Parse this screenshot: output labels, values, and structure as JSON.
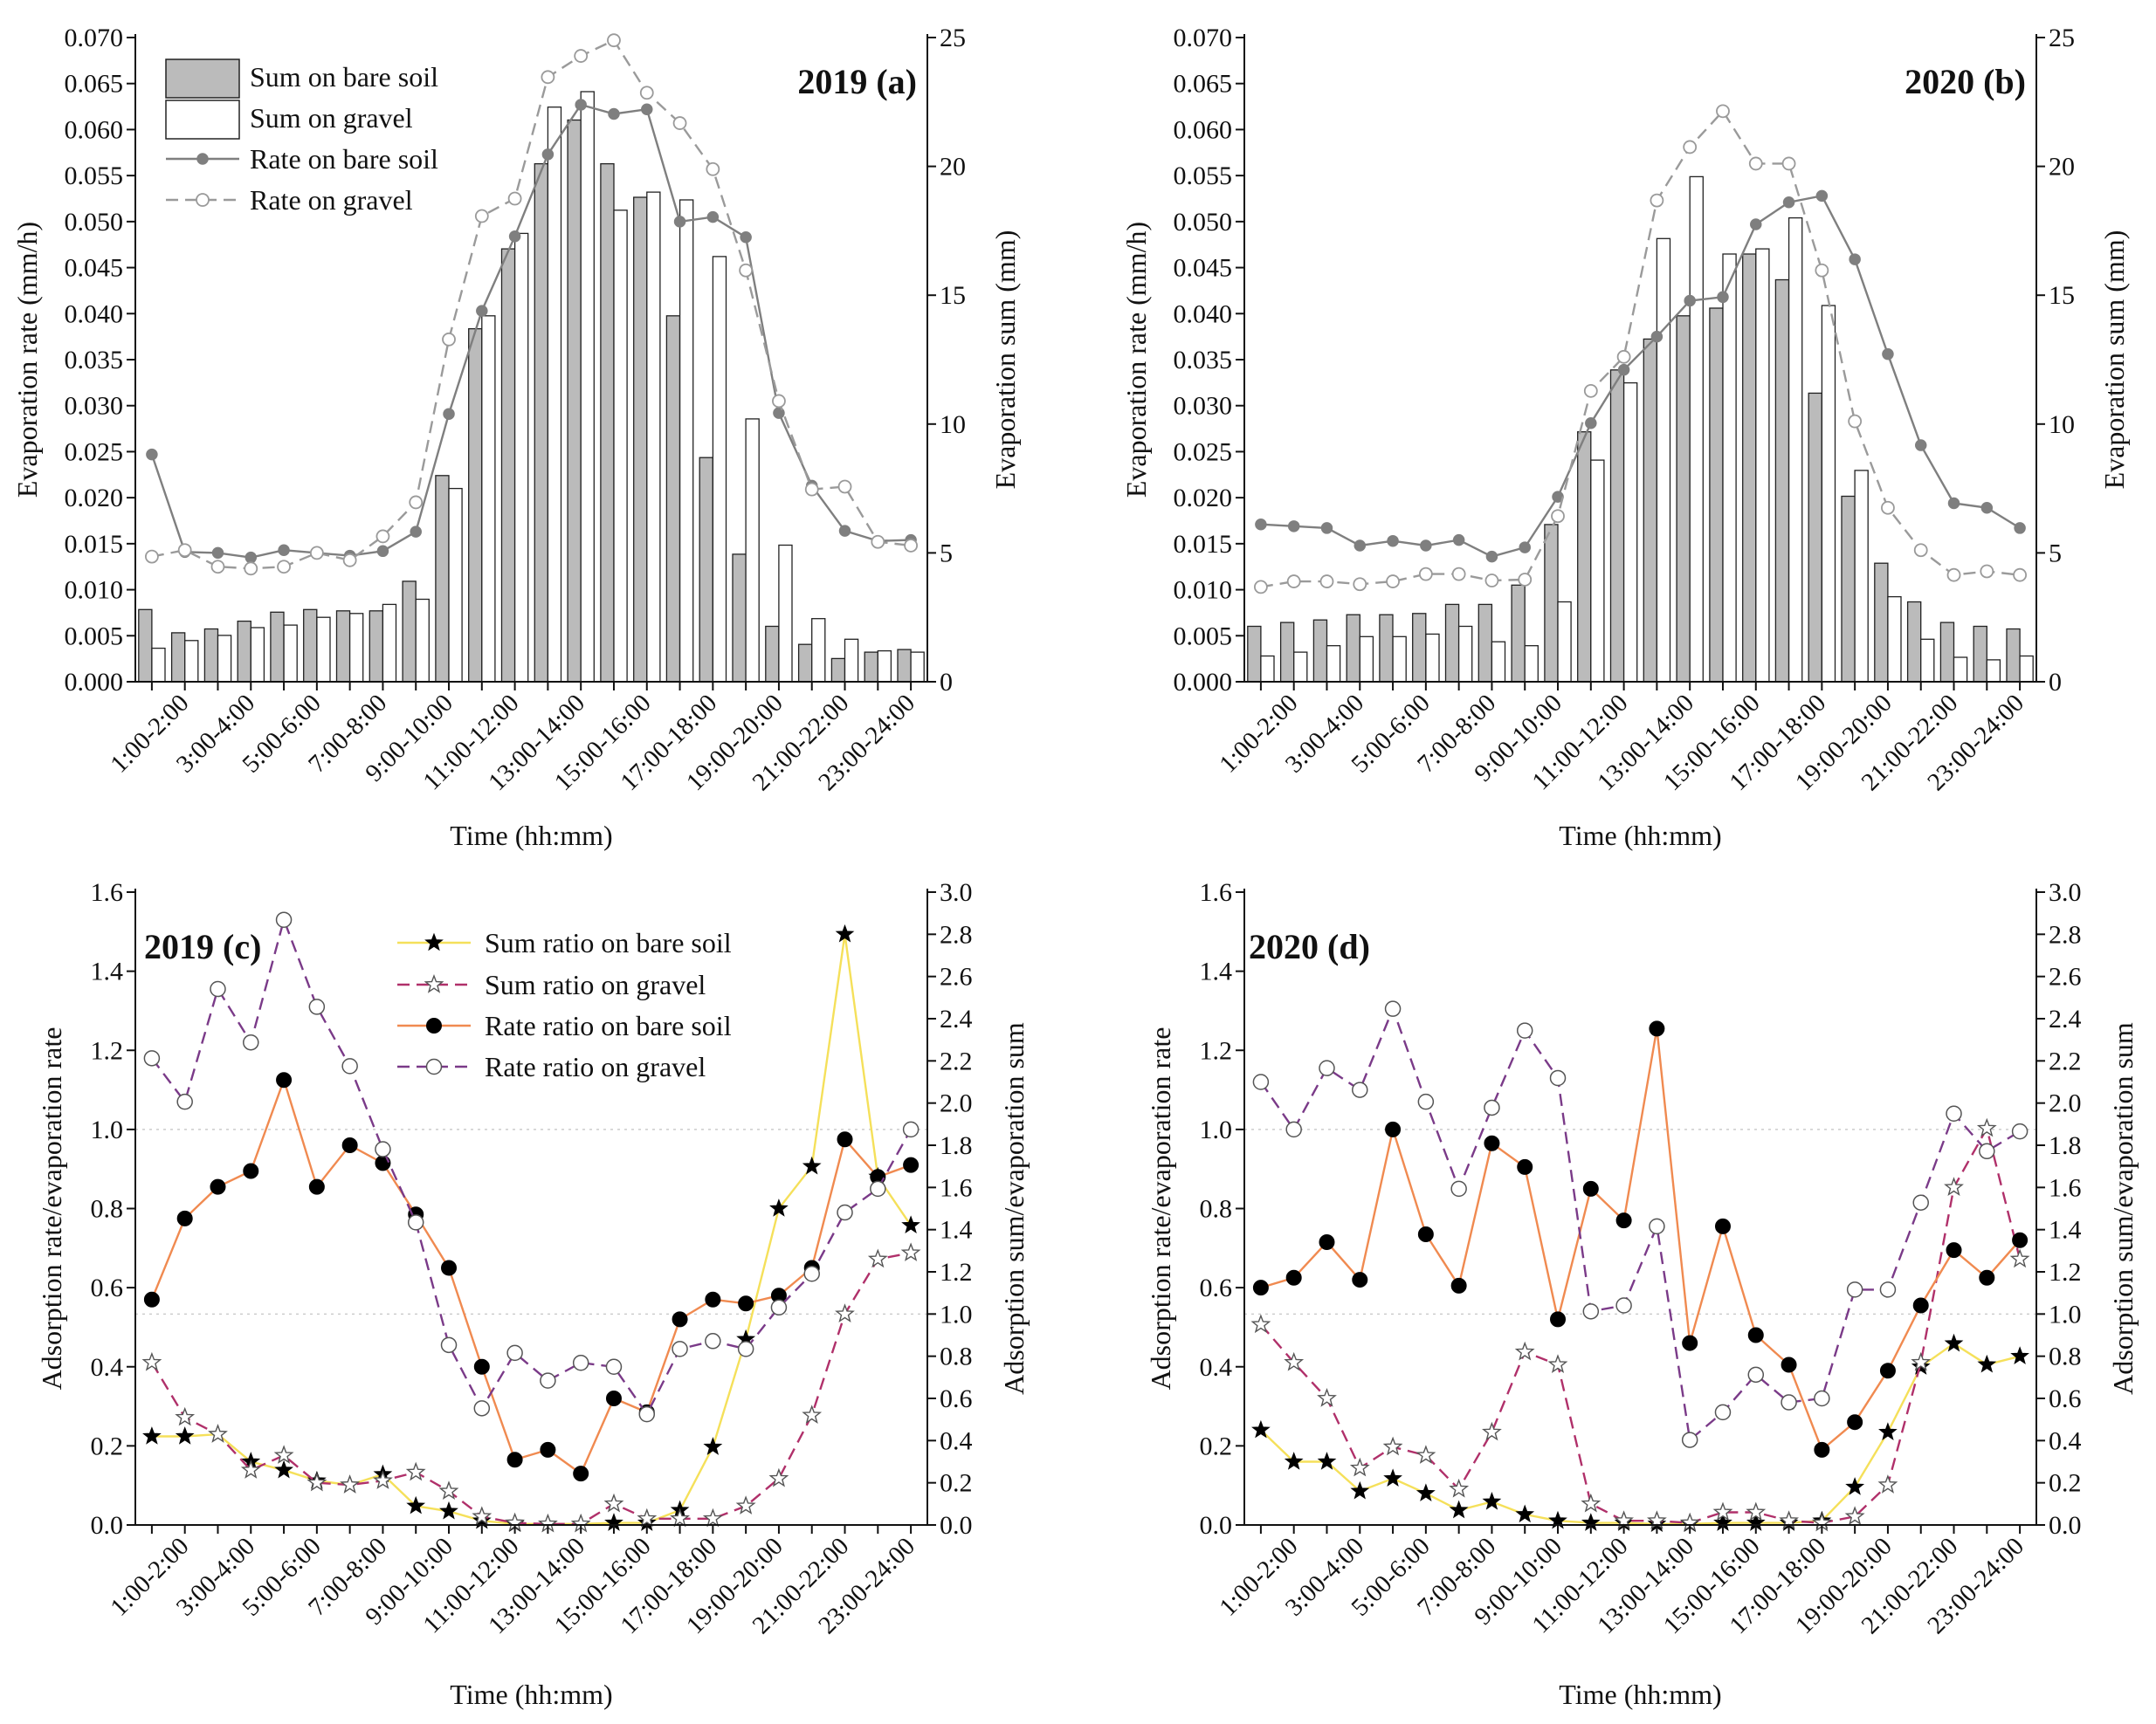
{
  "chart_data": [
    {
      "id": "a",
      "type": "bar+line",
      "title": "2019 (a)",
      "xlabel": "Time (hh:mm)",
      "ylabel_left": "Evaporation rate (mm/h)",
      "ylabel_right": "Evaporation sum (mm)",
      "ylim_left": [
        0,
        0.07
      ],
      "ylim_right": [
        0,
        25
      ],
      "yticks_left": [
        "0.000",
        "0.005",
        "0.010",
        "0.015",
        "0.020",
        "0.025",
        "0.030",
        "0.035",
        "0.040",
        "0.045",
        "0.050",
        "0.055",
        "0.060",
        "0.065",
        "0.070"
      ],
      "yticks_right": [
        "0",
        "5",
        "10",
        "15",
        "20",
        "25"
      ],
      "x_tick_labels": [
        "1:00-2:00",
        "3:00-4:00",
        "5:00-6:00",
        "7:00-8:00",
        "9:00-10:00",
        "11:00-12:00",
        "13:00-14:00",
        "15:00-16:00",
        "17:00-18:00",
        "19:00-20:00",
        "21:00-22:00",
        "23:00-24:00"
      ],
      "legend_position": "top-left",
      "series": [
        {
          "name": "Sum on bare soil",
          "kind": "bar",
          "axis": "right",
          "color": "#bbbbbb",
          "values": [
            2.8,
            1.9,
            2.05,
            2.35,
            2.7,
            2.8,
            2.75,
            2.75,
            3.9,
            8.0,
            13.7,
            16.8,
            20.1,
            21.8,
            20.1,
            18.8,
            14.2,
            8.7,
            4.95,
            2.15,
            1.45,
            0.9,
            1.15,
            1.25
          ]
        },
        {
          "name": "Sum on gravel",
          "kind": "bar",
          "axis": "right",
          "color": "#ffffff",
          "values": [
            1.3,
            1.6,
            1.8,
            2.1,
            2.2,
            2.5,
            2.65,
            3.0,
            3.2,
            7.5,
            14.2,
            17.4,
            22.3,
            22.9,
            18.3,
            19.0,
            18.7,
            16.5,
            10.2,
            5.3,
            2.45,
            1.65,
            1.2,
            1.15
          ]
        },
        {
          "name": "Rate on bare soil",
          "kind": "line",
          "axis": "left",
          "color": "#7f7f7f",
          "marker": "filled-circle",
          "values": [
            0.0247,
            0.0141,
            0.014,
            0.0135,
            0.0143,
            0.014,
            0.0137,
            0.0142,
            0.0163,
            0.0291,
            0.0403,
            0.0484,
            0.0573,
            0.0627,
            0.0617,
            0.0622,
            0.05,
            0.0505,
            0.0483,
            0.0292,
            0.0213,
            0.0164,
            0.0153,
            0.0154
          ]
        },
        {
          "name": "Rate on gravel",
          "kind": "line",
          "axis": "left",
          "color": "#9a9a9a",
          "dash": "14 8",
          "marker": "open-circle",
          "values": [
            0.0136,
            0.0143,
            0.0125,
            0.0123,
            0.0125,
            0.014,
            0.0132,
            0.0158,
            0.0195,
            0.0372,
            0.0506,
            0.0525,
            0.0657,
            0.068,
            0.0697,
            0.064,
            0.0607,
            0.0557,
            0.0447,
            0.0305,
            0.0209,
            0.0212,
            0.0152,
            0.0148
          ]
        }
      ]
    },
    {
      "id": "b",
      "type": "bar+line",
      "title": "2020 (b)",
      "xlabel": "Time (hh:mm)",
      "ylabel_left": "Evaporation rate (mm/h)",
      "ylabel_right": "Evaporation sum (mm)",
      "ylim_left": [
        0,
        0.07
      ],
      "ylim_right": [
        0,
        25
      ],
      "yticks_left": [
        "0.000",
        "0.005",
        "0.010",
        "0.015",
        "0.020",
        "0.025",
        "0.030",
        "0.035",
        "0.040",
        "0.045",
        "0.050",
        "0.055",
        "0.060",
        "0.065",
        "0.070"
      ],
      "yticks_right": [
        "0",
        "5",
        "10",
        "15",
        "20",
        "25"
      ],
      "x_tick_labels": [
        "1:00-2:00",
        "3:00-4:00",
        "5:00-6:00",
        "7:00-8:00",
        "9:00-10:00",
        "11:00-12:00",
        "13:00-14:00",
        "15:00-16:00",
        "17:00-18:00",
        "19:00-20:00",
        "21:00-22:00",
        "23:00-24:00"
      ],
      "legend_position": "none",
      "series": [
        {
          "name": "Sum on bare soil",
          "kind": "bar",
          "axis": "right",
          "color": "#bbbbbb",
          "values": [
            2.15,
            2.3,
            2.4,
            2.6,
            2.6,
            2.65,
            3.0,
            3.0,
            3.75,
            6.1,
            9.7,
            12.1,
            13.3,
            14.2,
            14.5,
            16.6,
            15.6,
            11.2,
            7.2,
            4.6,
            3.1,
            2.3,
            2.15,
            2.05
          ]
        },
        {
          "name": "Sum on gravel",
          "kind": "bar",
          "axis": "right",
          "color": "#ffffff",
          "values": [
            1.0,
            1.15,
            1.4,
            1.75,
            1.75,
            1.85,
            2.15,
            1.55,
            1.4,
            3.1,
            8.6,
            11.6,
            17.2,
            19.6,
            16.6,
            16.8,
            18.0,
            14.6,
            8.2,
            3.3,
            1.65,
            0.95,
            0.85,
            1.0
          ]
        },
        {
          "name": "Rate on bare soil",
          "kind": "line",
          "axis": "left",
          "color": "#7f7f7f",
          "marker": "filled-circle",
          "values": [
            0.0171,
            0.0169,
            0.0167,
            0.0148,
            0.0153,
            0.0148,
            0.0154,
            0.0136,
            0.0146,
            0.0201,
            0.0281,
            0.0339,
            0.0375,
            0.0414,
            0.0418,
            0.0497,
            0.0521,
            0.0528,
            0.0459,
            0.0356,
            0.0257,
            0.0194,
            0.0189,
            0.0167
          ]
        },
        {
          "name": "Rate on gravel",
          "kind": "line",
          "axis": "left",
          "color": "#9a9a9a",
          "dash": "14 8",
          "marker": "open-circle",
          "values": [
            0.0103,
            0.0109,
            0.0109,
            0.0106,
            0.0109,
            0.0117,
            0.0117,
            0.011,
            0.0111,
            0.018,
            0.0316,
            0.0353,
            0.0523,
            0.0581,
            0.062,
            0.0563,
            0.0563,
            0.0447,
            0.0283,
            0.0189,
            0.0143,
            0.0116,
            0.012,
            0.0116
          ]
        }
      ]
    },
    {
      "id": "c",
      "type": "line",
      "title": "2019 (c)",
      "xlabel": "Time (hh:mm)",
      "ylabel_left": "Adsorption rate/evaporation rate",
      "ylabel_right": "Adsorption sum/evaporation sum",
      "ylim_left": [
        0,
        1.6
      ],
      "ylim_right": [
        0,
        3.0
      ],
      "yticks_left": [
        "0.0",
        "0.2",
        "0.4",
        "0.6",
        "0.8",
        "1.0",
        "1.2",
        "1.4",
        "1.6"
      ],
      "yticks_right": [
        "0.0",
        "0.2",
        "0.4",
        "0.6",
        "0.8",
        "1.0",
        "1.2",
        "1.4",
        "1.6",
        "1.8",
        "2.0",
        "2.2",
        "2.4",
        "2.6",
        "2.8",
        "3.0"
      ],
      "reference_lines": [
        {
          "axis": "left",
          "value": 1.0
        },
        {
          "axis": "right",
          "value": 1.0
        }
      ],
      "x_tick_labels": [
        "1:00-2:00",
        "3:00-4:00",
        "5:00-6:00",
        "7:00-8:00",
        "9:00-10:00",
        "11:00-12:00",
        "13:00-14:00",
        "15:00-16:00",
        "17:00-18:00",
        "19:00-20:00",
        "21:00-22:00",
        "23:00-24:00"
      ],
      "legend_position": "top-center",
      "series": [
        {
          "name": "Sum ratio on bare soil",
          "axis": "right",
          "color": "#f5e05a",
          "marker": "filled-star",
          "values": [
            0.42,
            0.42,
            0.43,
            0.3,
            0.26,
            0.21,
            0.19,
            0.24,
            0.09,
            0.065,
            0.02,
            0.005,
            0.005,
            0.005,
            0.01,
            0.01,
            0.07,
            0.37,
            0.88,
            1.5,
            1.7,
            2.8,
            1.65,
            1.42
          ]
        },
        {
          "name": "Sum ratio on gravel",
          "axis": "right",
          "color": "#b0306a",
          "dash": "14 8",
          "marker": "open-star",
          "values": [
            0.77,
            0.51,
            0.43,
            0.26,
            0.33,
            0.2,
            0.19,
            0.21,
            0.25,
            0.16,
            0.04,
            0.01,
            0.005,
            0.005,
            0.1,
            0.03,
            0.03,
            0.03,
            0.09,
            0.22,
            0.52,
            1.0,
            1.26,
            1.29
          ]
        },
        {
          "name": "Rate ratio on bare soil",
          "axis": "left",
          "color": "#f08a50",
          "marker": "filled-circle",
          "values": [
            0.57,
            0.775,
            0.855,
            0.895,
            1.125,
            0.855,
            0.96,
            0.915,
            0.785,
            0.65,
            0.4,
            0.165,
            0.19,
            0.13,
            0.32,
            0.285,
            0.52,
            0.57,
            0.56,
            0.58,
            0.65,
            0.975,
            0.88,
            0.91
          ]
        },
        {
          "name": "Rate ratio on gravel",
          "axis": "left",
          "color": "#7a3a88",
          "dash": "14 8",
          "marker": "open-circle",
          "values": [
            1.18,
            1.07,
            1.355,
            1.22,
            1.53,
            1.31,
            1.16,
            0.95,
            0.765,
            0.455,
            0.295,
            0.435,
            0.365,
            0.41,
            0.4,
            0.28,
            0.445,
            0.465,
            0.445,
            0.55,
            0.635,
            0.79,
            0.85,
            1.0
          ]
        }
      ]
    },
    {
      "id": "d",
      "type": "line",
      "title": "2020 (d)",
      "xlabel": "Time (hh:mm)",
      "ylabel_left": "Adsorption rate/evaporation rate",
      "ylabel_right": "Adsorption sum/evaporation sum",
      "ylim_left": [
        0,
        1.6
      ],
      "ylim_right": [
        0,
        3.0
      ],
      "yticks_left": [
        "0.0",
        "0.2",
        "0.4",
        "0.6",
        "0.8",
        "1.0",
        "1.2",
        "1.4",
        "1.6"
      ],
      "yticks_right": [
        "0.0",
        "0.2",
        "0.4",
        "0.6",
        "0.8",
        "1.0",
        "1.2",
        "1.4",
        "1.6",
        "1.8",
        "2.0",
        "2.2",
        "2.4",
        "2.6",
        "2.8",
        "3.0"
      ],
      "reference_lines": [
        {
          "axis": "left",
          "value": 1.0
        },
        {
          "axis": "right",
          "value": 1.0
        }
      ],
      "x_tick_labels": [
        "1:00-2:00",
        "3:00-4:00",
        "5:00-6:00",
        "7:00-8:00",
        "9:00-10:00",
        "11:00-12:00",
        "13:00-14:00",
        "15:00-16:00",
        "17:00-18:00",
        "19:00-20:00",
        "21:00-22:00",
        "23:00-24:00"
      ],
      "legend_position": "none",
      "series": [
        {
          "name": "Sum ratio on bare soil",
          "axis": "right",
          "color": "#f5e05a",
          "marker": "filled-star",
          "values": [
            0.45,
            0.3,
            0.3,
            0.16,
            0.22,
            0.15,
            0.07,
            0.11,
            0.05,
            0.02,
            0.01,
            0.01,
            0.005,
            0.005,
            0.01,
            0.01,
            0.01,
            0.02,
            0.18,
            0.44,
            0.75,
            0.86,
            0.76,
            0.8
          ]
        },
        {
          "name": "Sum ratio on gravel",
          "axis": "right",
          "color": "#b0306a",
          "dash": "14 8",
          "marker": "open-star",
          "values": [
            0.95,
            0.77,
            0.6,
            0.27,
            0.37,
            0.33,
            0.17,
            0.44,
            0.82,
            0.76,
            0.1,
            0.02,
            0.02,
            0.01,
            0.06,
            0.06,
            0.02,
            0.01,
            0.04,
            0.19,
            0.77,
            1.6,
            1.88,
            1.26
          ]
        },
        {
          "name": "Rate ratio on bare soil",
          "axis": "left",
          "color": "#f08a50",
          "marker": "filled-circle",
          "values": [
            0.6,
            0.625,
            0.715,
            0.62,
            1.0,
            0.735,
            0.605,
            0.965,
            0.905,
            0.52,
            0.85,
            0.77,
            1.255,
            0.46,
            0.755,
            0.48,
            0.405,
            0.19,
            0.26,
            0.39,
            0.555,
            0.695,
            0.625,
            0.72
          ]
        },
        {
          "name": "Rate ratio on gravel",
          "axis": "left",
          "color": "#7a3a88",
          "dash": "14 8",
          "marker": "open-circle",
          "values": [
            1.12,
            1.0,
            1.155,
            1.1,
            1.305,
            1.07,
            0.85,
            1.055,
            1.25,
            1.13,
            0.54,
            0.555,
            0.755,
            0.215,
            0.285,
            0.38,
            0.31,
            0.32,
            0.595,
            0.595,
            0.815,
            1.04,
            0.945,
            0.995
          ]
        }
      ]
    }
  ]
}
